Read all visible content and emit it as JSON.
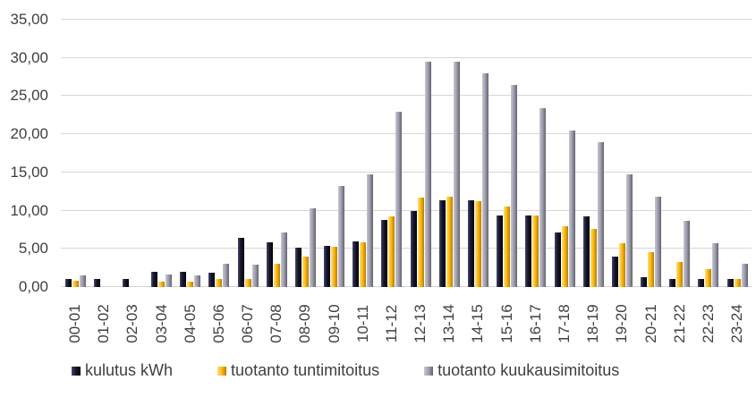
{
  "chart_data": {
    "type": "bar",
    "title": "",
    "xlabel": "",
    "ylabel": "",
    "ylim": [
      0,
      35
    ],
    "grid": true,
    "legend_position": "bottom",
    "yticks": [
      0,
      5,
      10,
      15,
      20,
      25,
      30,
      35
    ],
    "ytick_labels": [
      "0,00",
      "5,00",
      "10,00",
      "15,00",
      "20,00",
      "25,00",
      "30,00",
      "35,00"
    ],
    "categories": [
      "00-01",
      "01-02",
      "02-03",
      "03-04",
      "04-05",
      "05-06",
      "06-07",
      "07-08",
      "08-09",
      "09-10",
      "10-11",
      "11-12",
      "12-13",
      "13-14",
      "14-15",
      "15-16",
      "16-17",
      "17-18",
      "18-19",
      "19-20",
      "20-21",
      "21-22",
      "22-23",
      "23-24"
    ],
    "series": [
      {
        "key": "kulutus",
        "name": "kulutus kWh",
        "color": "#16162a",
        "color_light": "#45456a",
        "color_dark": "#04040c",
        "values": [
          1.1,
          1.1,
          1.1,
          2.0,
          2.0,
          1.9,
          6.4,
          5.9,
          5.2,
          5.4,
          6.0,
          8.8,
          10.0,
          11.3,
          11.3,
          9.4,
          9.4,
          7.2,
          9.3,
          4.0,
          1.3,
          1.0,
          1.1,
          1.1
        ]
      },
      {
        "key": "tuntimitoitus",
        "name": "tuotanto tuntimitoitus",
        "color": "#fdb913",
        "color_light": "#ffdf7e",
        "color_dark": "#b57f00",
        "values": [
          0.8,
          0,
          0,
          0.7,
          0.7,
          1.0,
          1.1,
          3.0,
          4.0,
          5.3,
          5.8,
          9.2,
          11.7,
          11.8,
          11.2,
          10.5,
          9.4,
          8.0,
          7.6,
          5.7,
          4.6,
          3.3,
          2.3,
          1.1
        ]
      },
      {
        "key": "kuukausimitoitus",
        "name": "tuotanto kuukausimitoitus",
        "color": "#a0a0b0",
        "color_light": "#c6c6d2",
        "color_dark": "#64646f",
        "values": [
          1.5,
          0,
          0,
          1.6,
          1.5,
          3.0,
          2.9,
          7.2,
          10.3,
          13.2,
          14.7,
          22.9,
          29.5,
          29.5,
          28.0,
          26.4,
          23.4,
          20.5,
          19.0,
          14.7,
          11.8,
          8.7,
          5.7,
          3.0
        ]
      }
    ],
    "gridline_color": "#d6d6d6",
    "tick_label_color": "#3f3f3f"
  }
}
